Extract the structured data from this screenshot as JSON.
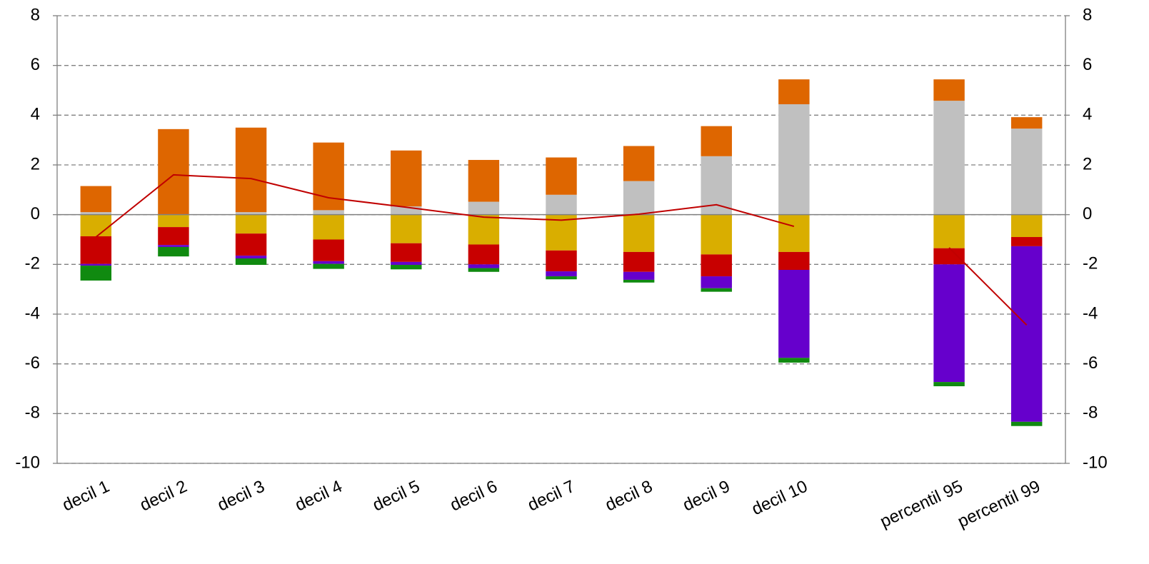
{
  "chart_data": {
    "type": "stacked_bar_line",
    "categories": [
      "decil 1",
      "decil 2",
      "decil 3",
      "decil 4",
      "decil 5",
      "decil 6",
      "decil 7",
      "decil 8",
      "decil 9",
      "decil 10",
      null,
      "percentil 95",
      "percentil 99"
    ],
    "series": [
      {
        "color": "#c0c0c0",
        "values": [
          0.1,
          0.02,
          0.1,
          0.18,
          0.33,
          0.52,
          0.8,
          1.35,
          2.35,
          4.44,
          null,
          4.58,
          3.46
        ]
      },
      {
        "color": "#de6600",
        "values": [
          1.05,
          3.42,
          3.4,
          2.72,
          2.25,
          1.68,
          1.5,
          1.41,
          1.21,
          1.0,
          null,
          0.86,
          0.46
        ]
      },
      {
        "color": "#d9ae00",
        "values": [
          -0.87,
          -0.5,
          -0.76,
          -1.0,
          -1.15,
          -1.2,
          -1.44,
          -1.5,
          -1.6,
          -1.5,
          null,
          -1.35,
          -0.9
        ]
      },
      {
        "color": "#c80000",
        "values": [
          -1.11,
          -0.72,
          -0.89,
          -0.87,
          -0.75,
          -0.8,
          -0.84,
          -0.8,
          -0.88,
          -0.72,
          null,
          -0.65,
          -0.37
        ]
      },
      {
        "color": "#6600cc",
        "values": [
          -0.07,
          -0.08,
          -0.11,
          -0.11,
          -0.12,
          -0.15,
          -0.2,
          -0.32,
          -0.48,
          -3.54,
          null,
          -4.73,
          -7.06
        ]
      },
      {
        "color": "#108a10",
        "values": [
          -0.6,
          -0.38,
          -0.26,
          -0.2,
          -0.18,
          -0.15,
          -0.12,
          -0.11,
          -0.14,
          -0.19,
          null,
          -0.17,
          -0.17
        ]
      }
    ],
    "line": {
      "color": "#c00000",
      "values": [
        -0.9,
        1.6,
        1.45,
        0.68,
        0.3,
        -0.1,
        -0.22,
        0.02,
        0.4,
        -0.47,
        null,
        -1.33,
        -4.44
      ]
    },
    "ylim": [
      -10,
      8
    ],
    "yticks": [
      -10,
      -8,
      -6,
      -4,
      -2,
      0,
      2,
      4,
      6,
      8
    ],
    "y2lim": [
      -10,
      8
    ],
    "y2ticks": [
      -10,
      -8,
      -6,
      -4,
      -2,
      0,
      2,
      4,
      6,
      8
    ],
    "grid": true
  }
}
